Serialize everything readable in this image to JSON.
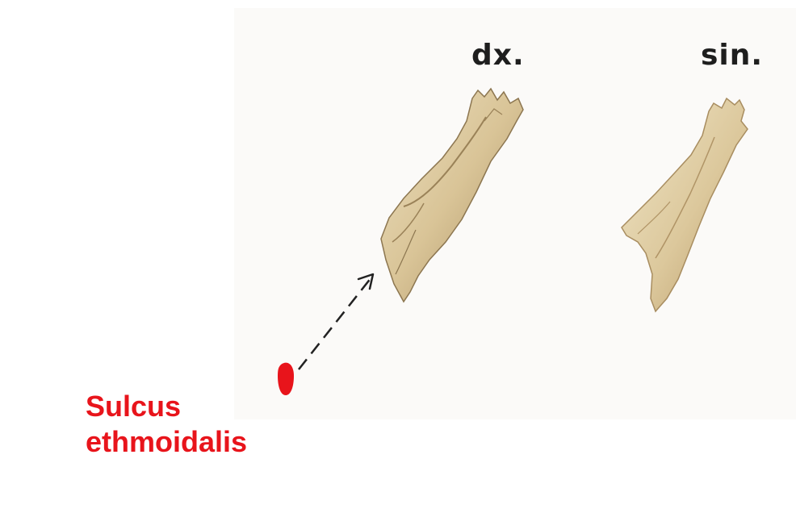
{
  "labels": {
    "right_side": "dx.",
    "left_side": "sin."
  },
  "callout": {
    "line1": "Sulcus",
    "line2": "ethmoidalis",
    "color": "#e8141b"
  },
  "colors": {
    "bone_light": "#e6d6ae",
    "bone_mid": "#cdb586",
    "bone_dark": "#8c7650",
    "label_text": "#1e1e1e",
    "plate_background": "#fbfaf8"
  },
  "icons": {
    "arrow": "dashed-arrow-icon",
    "marker": "red-marker-icon"
  }
}
